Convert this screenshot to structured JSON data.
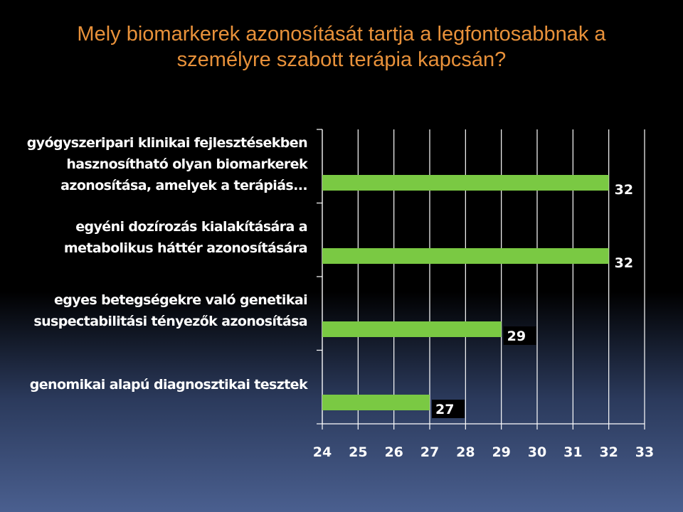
{
  "slide": {
    "title_line1": "Mely biomarkerek azonosítását tartja a legfontosabbnak a",
    "title_line2": "személyre szabott terápia kapcsán?",
    "title_color": "#e8913a",
    "bar_color": "#7ac943"
  },
  "chart_data": {
    "type": "bar",
    "orientation": "horizontal",
    "categories": [
      "gyógyszeripari klinikai fejlesztésekben hasznosítható olyan biomarkerek azonosítása, amelyek a terápiás...",
      "egyéni dozírozás kialakítására a metabolikus háttér azonosítására",
      "egyes betegségekre való genetikai suspectabilitási tényezők azonosítása",
      "genomikai alapú diagnosztikai tesztek"
    ],
    "category_lines": [
      [
        "gyógyszeripari klinikai fejlesztésekben",
        "hasznosítható olyan biomarkerek",
        "azonosítása, amelyek a terápiás..."
      ],
      [
        "egyéni dozírozás kialakítására a",
        "metabolikus háttér azonosítására"
      ],
      [
        "egyes betegségekre való genetikai",
        "suspectabilitási tényezők azonosítása"
      ],
      [
        "genomikai alapú diagnosztikai tesztek"
      ]
    ],
    "values": [
      32,
      32,
      29,
      27
    ],
    "data_labels": [
      "32",
      "32",
      "29",
      "27"
    ],
    "xlim": [
      24,
      33
    ],
    "xticks": [
      "24",
      "25",
      "26",
      "27",
      "28",
      "29",
      "30",
      "31",
      "32",
      "33"
    ],
    "grid": true
  }
}
